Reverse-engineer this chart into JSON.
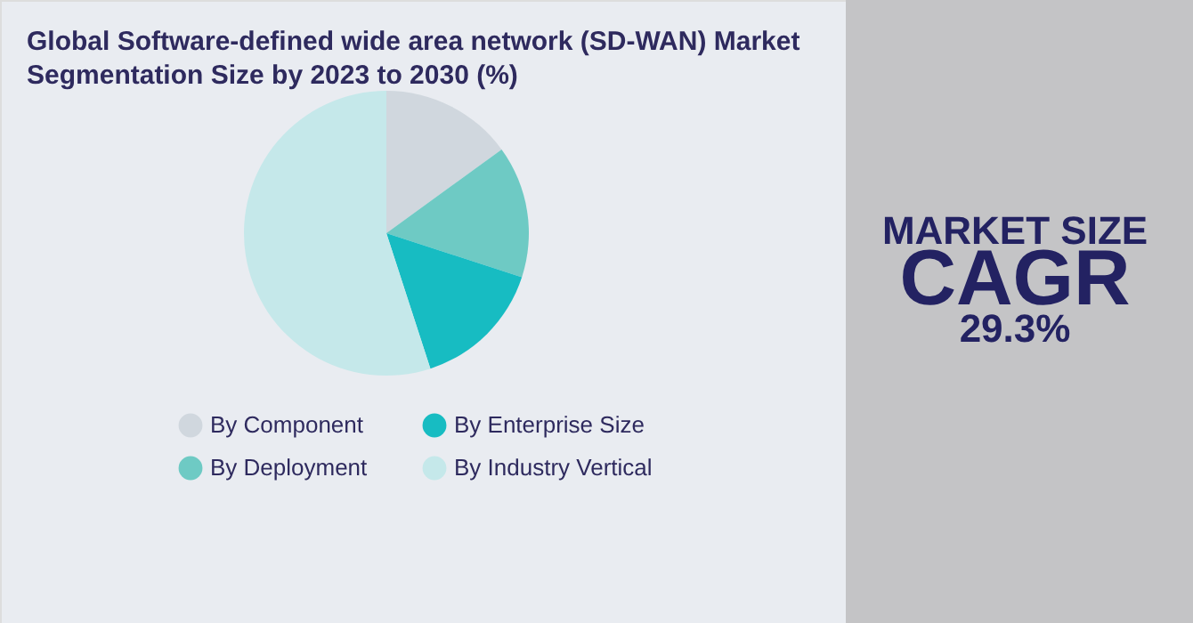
{
  "chart_data": {
    "type": "pie",
    "title": "Global Software-defined wide area network (SD-WAN) Market Segmentation Size by 2023 to 2030 (%)",
    "categories": [
      "By Component",
      "By Deployment",
      "By Enterprise Size",
      "By Industry Vertical"
    ],
    "values": [
      15,
      15,
      15,
      55
    ],
    "colors": [
      "#d0d7de",
      "#6ecac4",
      "#17bcc2",
      "#c5e8ea"
    ],
    "legend": "bottom",
    "annotations": [
      "MARKET SIZE",
      "CAGR",
      "29.3%"
    ]
  }
}
